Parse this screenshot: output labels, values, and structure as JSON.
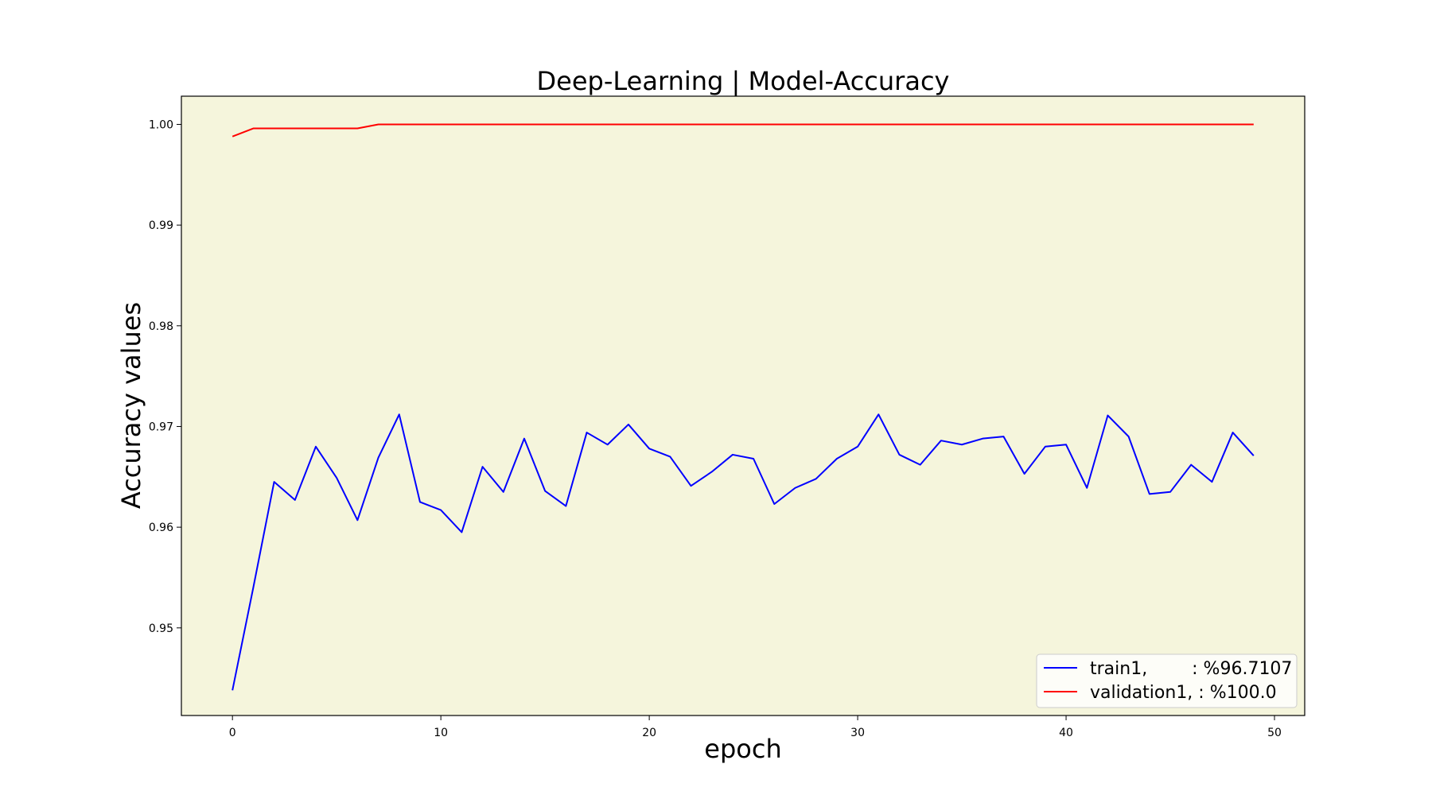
{
  "chart_data": {
    "type": "line",
    "title": "Deep-Learning | Model-Accuracy",
    "xlabel": "epoch",
    "ylabel": "Accuracy values",
    "xlim": [
      -2.45,
      51.45
    ],
    "ylim": [
      0.9413,
      1.0028
    ],
    "xticks": [
      0,
      10,
      20,
      30,
      40,
      50
    ],
    "xtick_labels": [
      "0",
      "10",
      "20",
      "30",
      "40",
      "50"
    ],
    "yticks": [
      0.95,
      0.96,
      0.97,
      0.98,
      0.99,
      1.0
    ],
    "ytick_labels": [
      "0.95",
      "0.96",
      "0.97",
      "0.98",
      "0.99",
      "1.00"
    ],
    "grid": false,
    "plot_background": "#f5f5dc",
    "legend_position": "bottom-right",
    "x": [
      0,
      1,
      2,
      3,
      4,
      5,
      6,
      7,
      8,
      9,
      10,
      11,
      12,
      13,
      14,
      15,
      16,
      17,
      18,
      19,
      20,
      21,
      22,
      23,
      24,
      25,
      26,
      27,
      28,
      29,
      30,
      31,
      32,
      33,
      34,
      35,
      36,
      37,
      38,
      39,
      40,
      41,
      42,
      43,
      44,
      45,
      46,
      47,
      48,
      49
    ],
    "series": [
      {
        "name": "train1,        : %96.7107",
        "color": "#0000ff",
        "values": [
          0.9438,
          0.954,
          0.9645,
          0.9627,
          0.968,
          0.9649,
          0.9607,
          0.9669,
          0.9712,
          0.9625,
          0.9617,
          0.9595,
          0.966,
          0.9635,
          0.9688,
          0.9636,
          0.9621,
          0.9694,
          0.9682,
          0.9702,
          0.9678,
          0.967,
          0.9641,
          0.9655,
          0.9672,
          0.9668,
          0.9623,
          0.9639,
          0.9648,
          0.9668,
          0.968,
          0.9712,
          0.9672,
          0.9662,
          0.9686,
          0.9682,
          0.9688,
          0.969,
          0.9653,
          0.968,
          0.9682,
          0.9639,
          0.9711,
          0.969,
          0.9633,
          0.9635,
          0.9662,
          0.9645,
          0.9694,
          0.9671
        ]
      },
      {
        "name": "validation1, : %100.0",
        "color": "#ff0000",
        "values": [
          0.9988,
          0.9996,
          0.9996,
          0.9996,
          0.9996,
          0.9996,
          0.9996,
          1.0,
          1.0,
          1.0,
          1.0,
          1.0,
          1.0,
          1.0,
          1.0,
          1.0,
          1.0,
          1.0,
          1.0,
          1.0,
          1.0,
          1.0,
          1.0,
          1.0,
          1.0,
          1.0,
          1.0,
          1.0,
          1.0,
          1.0,
          1.0,
          1.0,
          1.0,
          1.0,
          1.0,
          1.0,
          1.0,
          1.0,
          1.0,
          1.0,
          1.0,
          1.0,
          1.0,
          1.0,
          1.0,
          1.0,
          1.0,
          1.0,
          1.0,
          1.0
        ]
      }
    ]
  }
}
